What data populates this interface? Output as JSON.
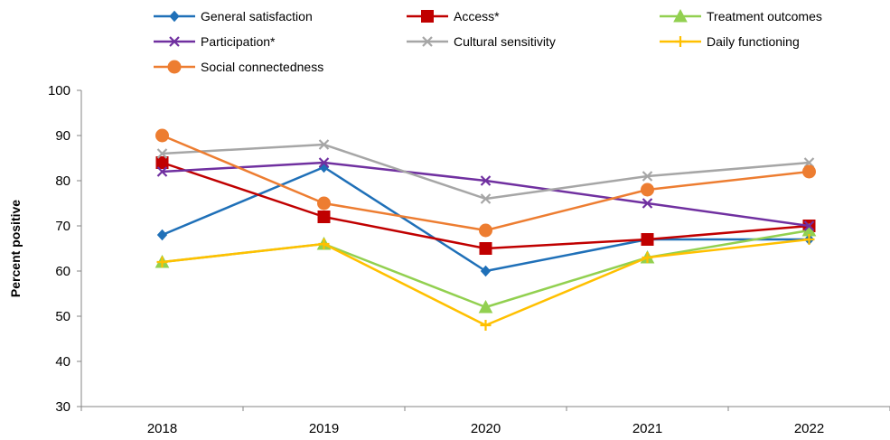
{
  "chart_data": {
    "type": "line",
    "title": "",
    "xlabel": "",
    "ylabel": "Percent positive",
    "categories": [
      "2018",
      "2019",
      "2020",
      "2021",
      "2022"
    ],
    "ylim": [
      30,
      100
    ],
    "yticks": [
      30,
      40,
      50,
      60,
      70,
      80,
      90,
      100
    ],
    "grid": false,
    "legend_position": "top",
    "series": [
      {
        "name": "General satisfaction",
        "values": [
          68,
          83,
          60,
          67,
          67
        ],
        "color": "#1f70b8",
        "marker": "diamond"
      },
      {
        "name": "Access*",
        "values": [
          84,
          72,
          65,
          67,
          70
        ],
        "color": "#c00000",
        "marker": "square"
      },
      {
        "name": "Treatment outcomes",
        "values": [
          62,
          66,
          52,
          63,
          69
        ],
        "color": "#92d050",
        "marker": "triangle"
      },
      {
        "name": "Participation*",
        "values": [
          82,
          84,
          80,
          75,
          70
        ],
        "color": "#7030a0",
        "marker": "x"
      },
      {
        "name": "Cultural sensitivity",
        "values": [
          86,
          88,
          76,
          81,
          84
        ],
        "color": "#a6a6a6",
        "marker": "x"
      },
      {
        "name": "Daily functioning",
        "values": [
          62,
          66,
          48,
          63,
          67
        ],
        "color": "#ffc000",
        "marker": "plus"
      },
      {
        "name": "Social connectedness",
        "values": [
          90,
          75,
          69,
          78,
          82
        ],
        "color": "#ed7d31",
        "marker": "circle"
      }
    ]
  }
}
